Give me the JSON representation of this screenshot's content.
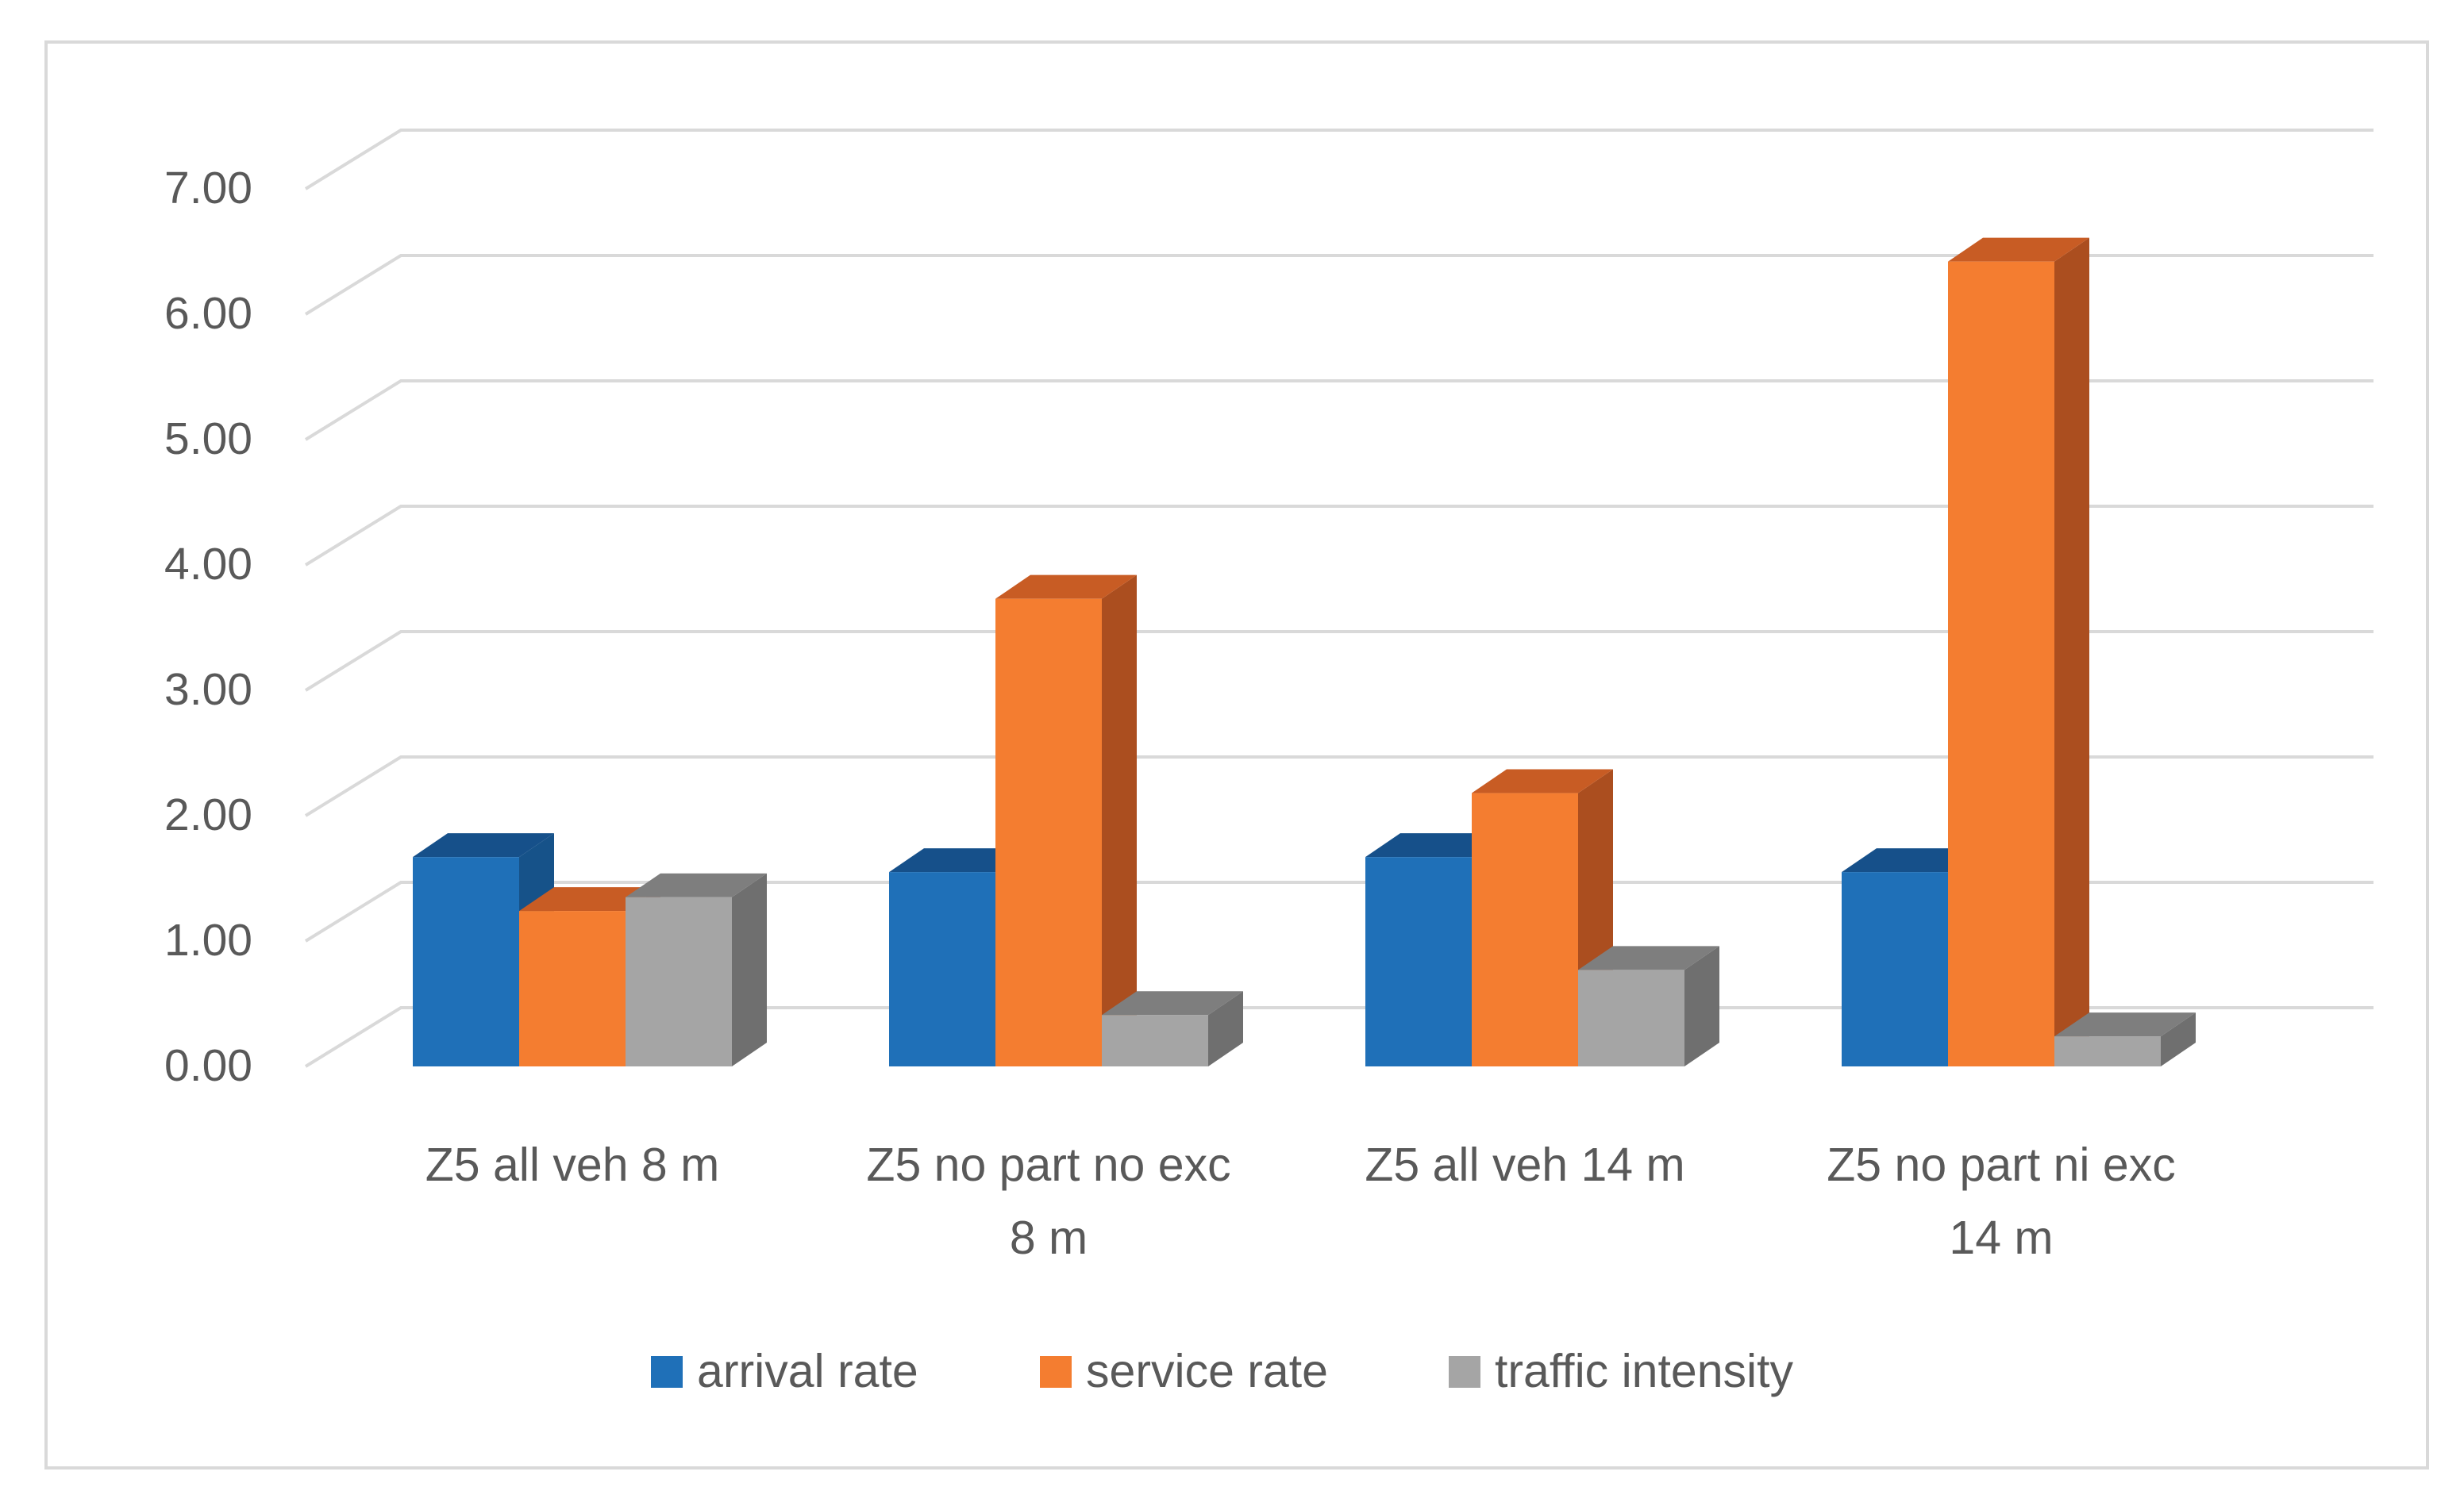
{
  "chart_data": {
    "type": "bar",
    "title": "",
    "xlabel": "",
    "ylabel": "",
    "ylim": [
      0,
      7
    ],
    "yticks": [
      "0.00",
      "1.00",
      "2.00",
      "3.00",
      "4.00",
      "5.00",
      "6.00",
      "7.00"
    ],
    "categories": [
      [
        "Z5 all veh 8 m"
      ],
      [
        "Z5 no part no exc",
        "8 m"
      ],
      [
        "Z5 all veh 14 m"
      ],
      [
        "Z5 no part ni exc",
        "14 m"
      ]
    ],
    "series": [
      {
        "name": "arrival rate",
        "values": [
          1.67,
          1.55,
          1.67,
          1.55
        ]
      },
      {
        "name": "service rate",
        "values": [
          1.24,
          3.73,
          2.18,
          6.42
        ]
      },
      {
        "name": "traffic intensity",
        "values": [
          1.35,
          0.41,
          0.77,
          0.24
        ]
      }
    ],
    "legend": {
      "position": "bottom",
      "items": [
        "arrival rate",
        "service rate",
        "traffic intensity"
      ]
    },
    "colors": {
      "series": [
        {
          "front": "#1f70b8",
          "side": "#165289",
          "top": "#16508a"
        },
        {
          "front": "#f47d30",
          "side": "#ab4e1f",
          "top": "#c85c24"
        },
        {
          "front": "#a5a5a5",
          "side": "#6f6f6f",
          "top": "#7e7e7e"
        }
      ],
      "grid": "#d9d9d9",
      "frame": "#d9d9d9",
      "text": "#595959"
    },
    "grid": true
  }
}
